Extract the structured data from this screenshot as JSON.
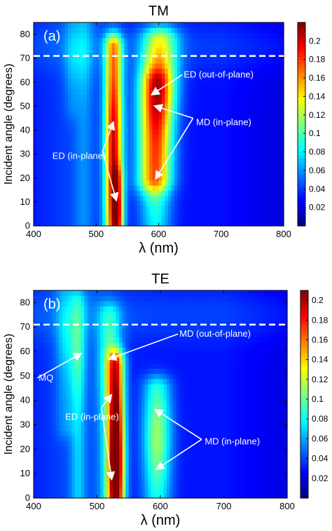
{
  "chart_data": [
    {
      "type": "heatmap",
      "title": "TM",
      "panel_label": "(a)",
      "xlabel": "λ (nm)",
      "ylabel": "Incident angle (degrees)",
      "xlim": [
        400,
        800
      ],
      "ylim": [
        0,
        85
      ],
      "xticks": [
        "400",
        "500",
        "600",
        "700",
        "800"
      ],
      "yticks": [
        "0",
        "10",
        "20",
        "30",
        "40",
        "50",
        "60",
        "70",
        "80"
      ],
      "colorbar": {
        "min": 0,
        "max": 0.22,
        "ticks": [
          "0.02",
          "0.04",
          "0.06",
          "0.08",
          "0.1",
          "0.12",
          "0.14",
          "0.16",
          "0.18",
          "0.2"
        ]
      },
      "dashed_line_angle": 71,
      "peaks": [
        {
          "x0": 528,
          "slope": 0.0,
          "width": 14,
          "amp": 0.17,
          "angles": [
            0,
            75
          ],
          "center": 30,
          "spread": 45
        },
        {
          "x0": 535,
          "slope": 0.0,
          "width": 9,
          "amp": 0.07,
          "angles": [
            0,
            20
          ],
          "center": 5,
          "spread": 12
        },
        {
          "x0": 590,
          "slope": 0.15,
          "width": 28,
          "amp": 0.14,
          "angles": [
            20,
            78
          ],
          "center": 58,
          "spread": 18
        },
        {
          "x0": 595,
          "slope": 0.0,
          "width": 25,
          "amp": 0.07,
          "angles": [
            0,
            60
          ],
          "center": 25,
          "spread": 25
        },
        {
          "x0": 460,
          "slope": 0.0,
          "width": 12,
          "amp": 0.02,
          "angles": [
            50,
            85
          ],
          "center": 70,
          "spread": 12
        },
        {
          "x0": 480,
          "slope": 0.0,
          "width": 15,
          "amp": 0.03,
          "angles": [
            0,
            85
          ],
          "center": 70,
          "spread": 15
        }
      ],
      "annotations": [
        {
          "text": "ED (out-of-plane)",
          "x": 640,
          "y": 62,
          "arrow_to": [
            590,
            55
          ]
        },
        {
          "text": "MD (in-plane)",
          "x": 660,
          "y": 42,
          "arrow_from": [
            655,
            45
          ],
          "arrow_to": [
            [
              595,
              50
            ],
            [
              596,
              20
            ]
          ]
        },
        {
          "text": "ED (in-plane)",
          "x": 430,
          "y": 28,
          "arrow_from": [
            510,
            31
          ],
          "arrow_to": [
            [
              527,
              43
            ],
            [
              532,
              11
            ]
          ]
        }
      ]
    },
    {
      "type": "heatmap",
      "title": "TE",
      "panel_label": "(b)",
      "xlabel": "λ (nm)",
      "ylabel": "Incident angle (degrees)",
      "xlim": [
        400,
        800
      ],
      "ylim": [
        0,
        85
      ],
      "xticks": [
        "400",
        "500",
        "600",
        "700",
        "800"
      ],
      "yticks": [
        "0",
        "10",
        "20",
        "30",
        "40",
        "50",
        "60",
        "70",
        "80"
      ],
      "colorbar": {
        "min": 0,
        "max": 0.21,
        "ticks": [
          "0.02",
          "0.04",
          "0.06",
          "0.08",
          "0.1",
          "0.12",
          "0.14",
          "0.16",
          "0.18",
          "0.2"
        ]
      },
      "dashed_line_angle": 71,
      "peaks": [
        {
          "x0": 530,
          "slope": 0.0,
          "width": 13,
          "amp": 0.19,
          "angles": [
            0,
            55
          ],
          "center": 15,
          "spread": 30
        },
        {
          "x0": 520,
          "slope": 0.0,
          "width": 18,
          "amp": 0.06,
          "angles": [
            0,
            75
          ],
          "center": 55,
          "spread": 20
        },
        {
          "x0": 595,
          "slope": 0.0,
          "width": 22,
          "amp": 0.08,
          "angles": [
            0,
            45
          ],
          "center": 25,
          "spread": 20
        },
        {
          "x0": 470,
          "slope": 0.0,
          "width": 12,
          "amp": 0.05,
          "angles": [
            0,
            80
          ],
          "center": 60,
          "spread": 20
        },
        {
          "x0": 450,
          "slope": 0.0,
          "width": 15,
          "amp": 0.03,
          "angles": [
            30,
            85
          ],
          "center": 65,
          "spread": 15
        }
      ],
      "annotations": [
        {
          "text": "MD (out-of-plane)",
          "x": 630,
          "y": 66,
          "arrow_to": [
            520,
            57
          ]
        },
        {
          "text": "MQ",
          "x": 408,
          "y": 48,
          "arrow_to": [
            474,
            59
          ]
        },
        {
          "text": "ED (in-plane)",
          "x": 450,
          "y": 32,
          "arrow_from": [
            507,
            37
          ],
          "arrow_to": [
            [
              522,
              42
            ],
            [
              523,
              8
            ]
          ]
        },
        {
          "text": "MD (in-plane)",
          "x": 670,
          "y": 22,
          "arrow_from": [
            665,
            24
          ],
          "arrow_to": [
            [
              593,
              36
            ],
            [
              595,
              12
            ]
          ]
        }
      ]
    }
  ]
}
